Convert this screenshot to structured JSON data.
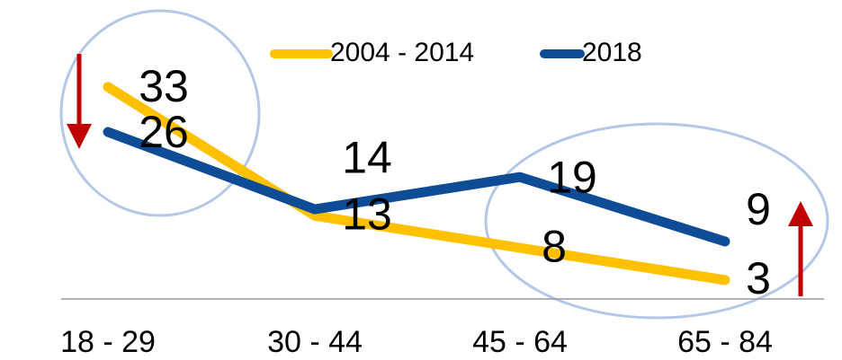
{
  "chart_data": {
    "type": "line",
    "categories": [
      "18 - 29",
      "30 - 44",
      "45 - 64",
      "65 - 84"
    ],
    "series": [
      {
        "name": "2004 - 2014",
        "color": "#ffc000",
        "values": [
          33,
          13,
          8,
          3
        ]
      },
      {
        "name": "2018",
        "color": "#0e4c96",
        "values": [
          26,
          14,
          19,
          9
        ]
      }
    ],
    "ylim": [
      0,
      46.5
    ]
  }
}
